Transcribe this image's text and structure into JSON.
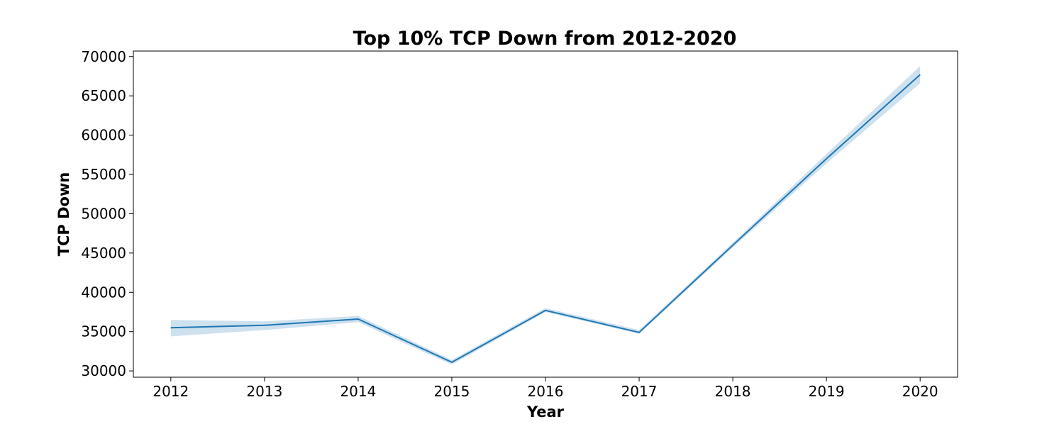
{
  "chart_data": {
    "type": "line",
    "title": "Top 10% TCP Down from 2012-2020",
    "xlabel": "Year",
    "ylabel": "TCP Down",
    "x": [
      2012,
      2013,
      2014,
      2015,
      2016,
      2017,
      2018,
      2019,
      2020
    ],
    "xlim": [
      2011.6,
      2020.4
    ],
    "ylim": [
      29200,
      70700
    ],
    "yticks": [
      30000,
      35000,
      40000,
      45000,
      50000,
      55000,
      60000,
      65000,
      70000
    ],
    "grid": false,
    "series": [
      {
        "values": [
          35500,
          35800,
          36600,
          31100,
          37700,
          34900,
          46000,
          57000,
          67700
        ],
        "ci_lower": [
          34400,
          35200,
          36200,
          30800,
          37500,
          34700,
          45700,
          56400,
          66600
        ],
        "ci_upper": [
          36500,
          36300,
          37000,
          31400,
          38000,
          35200,
          46300,
          57600,
          68800
        ],
        "color": "#1f77b4",
        "band_color": "#1f77b4"
      }
    ]
  }
}
